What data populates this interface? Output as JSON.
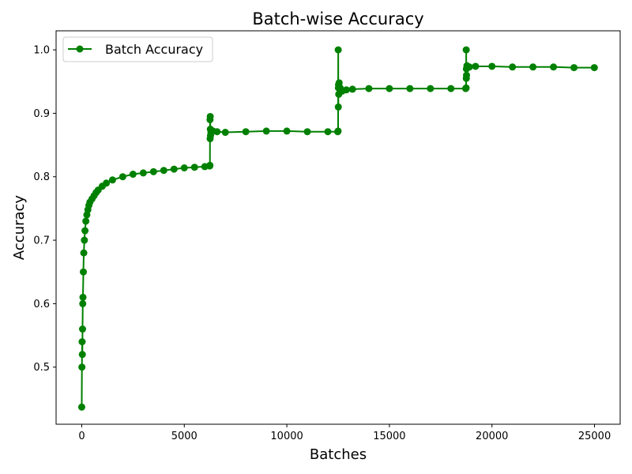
{
  "chart_data": {
    "type": "line",
    "title": "Batch-wise Accuracy",
    "xlabel": "Batches",
    "ylabel": "Accuracy",
    "xlim": [
      -1250,
      26250
    ],
    "ylim": [
      0.41,
      1.03
    ],
    "xticks": [
      0,
      5000,
      10000,
      15000,
      20000,
      25000
    ],
    "xtick_labels": [
      "0",
      "5000",
      "10000",
      "15000",
      "20000",
      "25000"
    ],
    "yticks": [
      0.5,
      0.6,
      0.7,
      0.8,
      0.9,
      1.0
    ],
    "ytick_labels": [
      "0.5",
      "0.6",
      "0.7",
      "0.8",
      "0.9",
      "1.0"
    ],
    "grid": false,
    "legend_position": "top-left",
    "series": [
      {
        "name": "Batch Accuracy",
        "color": "#008000",
        "marker": "circle",
        "x": [
          0,
          10,
          20,
          30,
          40,
          50,
          60,
          80,
          100,
          130,
          160,
          200,
          250,
          300,
          350,
          400,
          500,
          600,
          700,
          800,
          1000,
          1200,
          1500,
          2000,
          2500,
          3000,
          3500,
          4000,
          4500,
          5000,
          5500,
          6000,
          6240,
          6250,
          6255,
          6260,
          6265,
          6270,
          6280,
          6300,
          6400,
          6600,
          7000,
          8000,
          9000,
          10000,
          11000,
          12000,
          12480,
          12500,
          12505,
          12510,
          12515,
          12520,
          12530,
          12550,
          12600,
          12700,
          12900,
          13200,
          14000,
          15000,
          16000,
          17000,
          18000,
          18720,
          18740,
          18745,
          18750,
          18755,
          18760,
          18780,
          18800,
          18900,
          19200,
          20000,
          21000,
          22000,
          23000,
          24000,
          24990
        ],
        "values": [
          0.437,
          0.5,
          0.54,
          0.52,
          0.56,
          0.6,
          0.61,
          0.65,
          0.68,
          0.7,
          0.715,
          0.73,
          0.74,
          0.748,
          0.755,
          0.76,
          0.765,
          0.77,
          0.775,
          0.779,
          0.785,
          0.79,
          0.795,
          0.8,
          0.804,
          0.806,
          0.808,
          0.81,
          0.812,
          0.814,
          0.815,
          0.816,
          0.817,
          0.818,
          0.89,
          0.86,
          0.895,
          0.875,
          0.865,
          0.87,
          0.872,
          0.871,
          0.87,
          0.871,
          0.872,
          0.872,
          0.871,
          0.871,
          0.871,
          0.872,
          1.0,
          0.91,
          0.94,
          0.945,
          0.93,
          0.948,
          0.94,
          0.935,
          0.937,
          0.938,
          0.939,
          0.939,
          0.939,
          0.939,
          0.939,
          0.939,
          0.94,
          1.0,
          0.955,
          0.97,
          0.96,
          0.975,
          0.972,
          0.973,
          0.974,
          0.974,
          0.973,
          0.973,
          0.973,
          0.972,
          0.972
        ]
      }
    ]
  }
}
